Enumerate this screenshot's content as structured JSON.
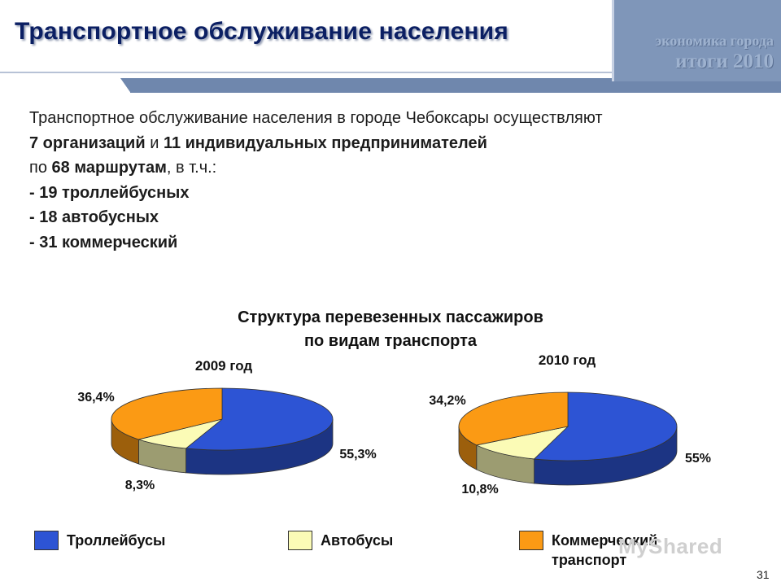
{
  "header": {
    "title": "Транспортное обслуживание населения",
    "badge_line1": "экономика города",
    "badge_line2": "итоги 2010"
  },
  "intro": {
    "line1": "Транспортное обслуживание населения в городе Чебоксары осуществляют",
    "line2_a": "7 организаций",
    "line2_b": " и ",
    "line2_c": "11 индивидуальных предпринимателей",
    "line3_a": "по ",
    "line3_b": "68 маршрутам",
    "line3_c": ", в т.ч.:",
    "line4": "- 19 троллейбусных",
    "line5": "- 18 автобусных",
    "line6": "- 31 коммерческий"
  },
  "chart_data": {
    "title_line1": "Структура перевезенных пассажиров",
    "title_line2": "по видам транспорта",
    "type": "pie",
    "categories": [
      "Троллейбусы",
      "Автобусы",
      "Коммерческий транспорт"
    ],
    "series": [
      {
        "name": "2009 год",
        "values": [
          55.3,
          8.3,
          36.4
        ],
        "labels": [
          "55,3%",
          "8,3%",
          "36,4%"
        ]
      },
      {
        "name": "2010 год",
        "values": [
          55,
          10.8,
          34.2
        ],
        "labels": [
          "55%",
          "10,8%",
          "34,2%"
        ]
      }
    ],
    "colors": [
      "#2d54d4",
      "#fbfbb6",
      "#fb9a14"
    ],
    "legend_placement": "bottom"
  },
  "legend": {
    "items": [
      {
        "label": "Троллейбусы",
        "color": "#2d54d4"
      },
      {
        "label": "Автобусы",
        "color": "#fbfbb6"
      },
      {
        "label": "Коммерческий транспорт",
        "color": "#fb9a14"
      }
    ]
  },
  "watermark": "MyShared",
  "page_number": "31"
}
